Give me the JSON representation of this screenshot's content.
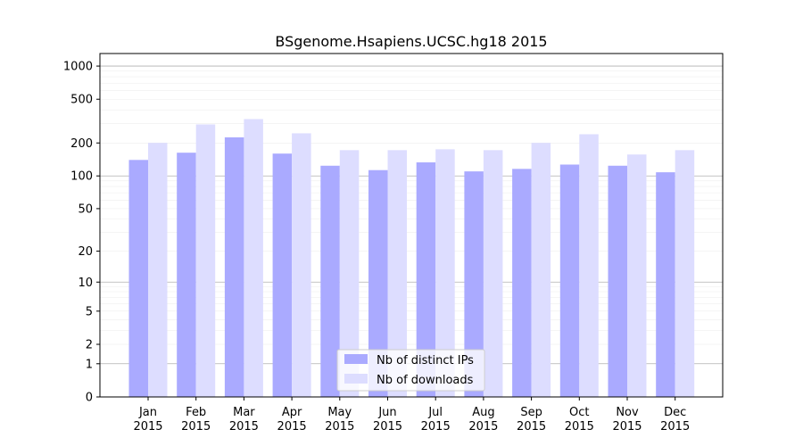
{
  "chart_data": {
    "type": "bar",
    "title": "BSgenome.Hsapiens.UCSC.hg18 2015",
    "xlabel": "",
    "ylabel": "",
    "yscale": "log(1+y)",
    "ylim": [
      0,
      1300
    ],
    "yticks": [
      {
        "value": 0,
        "label": "0"
      },
      {
        "value": 1,
        "label": "1"
      },
      {
        "value": 2,
        "label": "2"
      },
      {
        "value": 5,
        "label": "5"
      },
      {
        "value": 10,
        "label": "10"
      },
      {
        "value": 20,
        "label": "20"
      },
      {
        "value": 50,
        "label": "50"
      },
      {
        "value": 100,
        "label": "100"
      },
      {
        "value": 200,
        "label": "200"
      },
      {
        "value": 500,
        "label": "500"
      },
      {
        "value": 1000,
        "label": "1000"
      }
    ],
    "categories": [
      {
        "month": "Jan",
        "year": "2015"
      },
      {
        "month": "Feb",
        "year": "2015"
      },
      {
        "month": "Mar",
        "year": "2015"
      },
      {
        "month": "Apr",
        "year": "2015"
      },
      {
        "month": "May",
        "year": "2015"
      },
      {
        "month": "Jun",
        "year": "2015"
      },
      {
        "month": "Jul",
        "year": "2015"
      },
      {
        "month": "Aug",
        "year": "2015"
      },
      {
        "month": "Sep",
        "year": "2015"
      },
      {
        "month": "Oct",
        "year": "2015"
      },
      {
        "month": "Nov",
        "year": "2015"
      },
      {
        "month": "Dec",
        "year": "2015"
      }
    ],
    "series": [
      {
        "name": "Nb of distinct IPs",
        "color": "#aaaaff",
        "values": [
          140,
          163,
          225,
          160,
          124,
          113,
          133,
          110,
          116,
          127,
          124,
          108
        ]
      },
      {
        "name": "Nb of downloads",
        "color": "#ddddff",
        "values": [
          200,
          295,
          330,
          245,
          172,
          172,
          175,
          172,
          200,
          240,
          157,
          172
        ]
      }
    ],
    "grid": true,
    "legend_position": "bottom-center"
  }
}
